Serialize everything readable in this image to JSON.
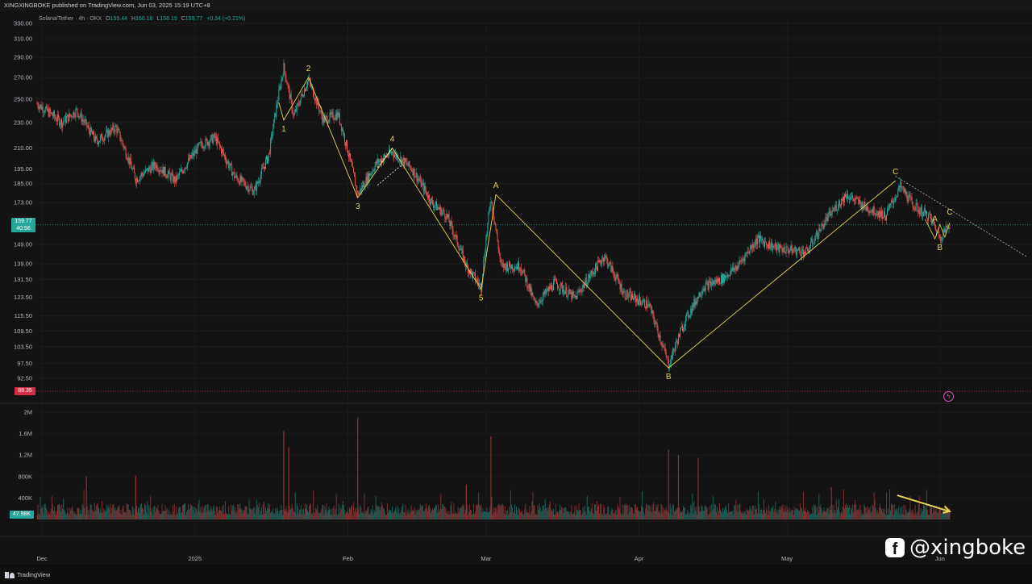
{
  "header": {
    "publish_line": "XINGXINGBOKE published on TradingView.com, Jun 03, 2025 15:19 UTC+8"
  },
  "legend": {
    "symbol": "Solana/Tether · 4h · OKX",
    "open_label": "O",
    "open": "159.44",
    "high_label": "H",
    "high": "160.18",
    "low_label": "L",
    "low": "158.19",
    "close_label": "C",
    "close": "159.77",
    "change": "+0.34 (+0.21%)"
  },
  "price_tag": {
    "price": "159.77",
    "countdown": "40:56"
  },
  "low_tag": "88.35",
  "volume_tag": "47.98K",
  "footer": {
    "brand": "TradingView"
  },
  "watermark": {
    "handle": "@xingboke",
    "icon": "facebook-icon"
  },
  "colors": {
    "up": "#26a69a",
    "down": "#ef5350",
    "wave": "#e8d44d",
    "background": "#131313"
  },
  "chart_data": {
    "type": "candlestick",
    "symbol": "Solana/Tether",
    "interval": "4h",
    "exchange": "OKX",
    "y_ticks": [
      "330.00",
      "310.00",
      "290.00",
      "270.00",
      "250.00",
      "230.00",
      "210.00",
      "195.00",
      "185.00",
      "173.00",
      "159.77",
      "149.00",
      "139.00",
      "131.50",
      "123.50",
      "115.50",
      "109.50",
      "103.50",
      "97.50",
      "92.50",
      "88.35"
    ],
    "y_tick_values": [
      330,
      310,
      290,
      270,
      250,
      230,
      210,
      195,
      185,
      173,
      159.77,
      149,
      139,
      131.5,
      123.5,
      115.5,
      109.5,
      103.5,
      97.5,
      92.5,
      88.35
    ],
    "volume_ticks": [
      "2M",
      "1.6M",
      "1.2M",
      "800K",
      "400K"
    ],
    "volume_tick_values": [
      2000000,
      1600000,
      1200000,
      800000,
      400000
    ],
    "x_ticks": [
      "Dec",
      "2025",
      "Feb",
      "Mar",
      "Apr",
      "May",
      "Jun"
    ],
    "x_tick_dates": [
      "2024-12-01",
      "2025-01-01",
      "2025-02-01",
      "2025-03-01",
      "2025-04-01",
      "2025-05-01",
      "2025-06-01"
    ],
    "date_range": [
      "2024-11-30",
      "2025-06-03"
    ],
    "log_scale": true,
    "price_anchors": [
      {
        "date": "2024-11-30",
        "price": 246
      },
      {
        "date": "2024-12-05",
        "price": 230
      },
      {
        "date": "2024-12-08",
        "price": 240
      },
      {
        "date": "2024-12-12",
        "price": 215
      },
      {
        "date": "2024-12-16",
        "price": 226
      },
      {
        "date": "2024-12-20",
        "price": 188
      },
      {
        "date": "2024-12-24",
        "price": 198
      },
      {
        "date": "2024-12-28",
        "price": 187
      },
      {
        "date": "2025-01-02",
        "price": 212
      },
      {
        "date": "2025-01-05",
        "price": 218
      },
      {
        "date": "2025-01-09",
        "price": 190
      },
      {
        "date": "2025-01-13",
        "price": 180
      },
      {
        "date": "2025-01-16",
        "price": 205
      },
      {
        "date": "2025-01-19",
        "price": 280
      },
      {
        "date": "2025-01-21",
        "price": 235
      },
      {
        "date": "2025-01-24",
        "price": 268
      },
      {
        "date": "2025-01-27",
        "price": 232
      },
      {
        "date": "2025-01-30",
        "price": 237
      },
      {
        "date": "2025-02-03",
        "price": 178
      },
      {
        "date": "2025-02-07",
        "price": 200
      },
      {
        "date": "2025-02-10",
        "price": 207
      },
      {
        "date": "2025-02-14",
        "price": 195
      },
      {
        "date": "2025-02-18",
        "price": 173
      },
      {
        "date": "2025-02-21",
        "price": 165
      },
      {
        "date": "2025-02-25",
        "price": 138
      },
      {
        "date": "2025-02-28",
        "price": 128
      },
      {
        "date": "2025-03-02",
        "price": 176
      },
      {
        "date": "2025-03-04",
        "price": 138
      },
      {
        "date": "2025-03-08",
        "price": 138
      },
      {
        "date": "2025-03-11",
        "price": 120
      },
      {
        "date": "2025-03-15",
        "price": 130
      },
      {
        "date": "2025-03-19",
        "price": 123
      },
      {
        "date": "2025-03-25",
        "price": 143
      },
      {
        "date": "2025-03-29",
        "price": 125
      },
      {
        "date": "2025-04-03",
        "price": 120
      },
      {
        "date": "2025-04-07",
        "price": 97
      },
      {
        "date": "2025-04-10",
        "price": 112
      },
      {
        "date": "2025-04-14",
        "price": 128
      },
      {
        "date": "2025-04-18",
        "price": 132
      },
      {
        "date": "2025-04-21",
        "price": 138
      },
      {
        "date": "2025-04-25",
        "price": 152
      },
      {
        "date": "2025-04-29",
        "price": 147
      },
      {
        "date": "2025-05-05",
        "price": 145
      },
      {
        "date": "2025-05-09",
        "price": 163
      },
      {
        "date": "2025-05-13",
        "price": 178
      },
      {
        "date": "2025-05-17",
        "price": 170
      },
      {
        "date": "2025-05-21",
        "price": 165
      },
      {
        "date": "2025-05-24",
        "price": 183
      },
      {
        "date": "2025-05-27",
        "price": 170
      },
      {
        "date": "2025-05-30",
        "price": 164
      },
      {
        "date": "2025-06-01",
        "price": 153
      },
      {
        "date": "2025-06-03",
        "price": 159.77
      }
    ],
    "volume_spikes": [
      {
        "date": "2025-01-19",
        "volume": 1650000
      },
      {
        "date": "2025-01-20",
        "volume": 1350000
      },
      {
        "date": "2025-02-03",
        "volume": 1900000
      },
      {
        "date": "2025-03-02",
        "volume": 1550000
      },
      {
        "date": "2025-02-25",
        "volume": 650000
      },
      {
        "date": "2025-04-07",
        "volume": 1300000
      },
      {
        "date": "2025-04-09",
        "volume": 1200000
      },
      {
        "date": "2025-04-13",
        "volume": 1150000
      },
      {
        "date": "2024-12-10",
        "volume": 800000
      },
      {
        "date": "2024-12-20",
        "volume": 820000
      },
      {
        "date": "2025-05-10",
        "volume": 600000
      }
    ],
    "elliott_waves": [
      {
        "label": "1",
        "date": "2025-01-19",
        "price": 232,
        "pos": "below"
      },
      {
        "label": "2",
        "date": "2025-01-24",
        "price": 270,
        "pos": "above"
      },
      {
        "label": "3",
        "date": "2025-02-03",
        "price": 176,
        "pos": "below"
      },
      {
        "label": "4",
        "date": "2025-02-10",
        "price": 210,
        "pos": "above"
      },
      {
        "label": "5",
        "date": "2025-02-28",
        "price": 127,
        "pos": "below"
      },
      {
        "label": "A",
        "date": "2025-03-03",
        "price": 178,
        "pos": "above"
      },
      {
        "label": "B",
        "date": "2025-04-07",
        "price": 96,
        "pos": "below"
      },
      {
        "label": "C",
        "date": "2025-05-23",
        "price": 187,
        "pos": "above"
      },
      {
        "label": "A",
        "date": "2025-05-31",
        "price": 158,
        "pos": "above"
      },
      {
        "label": "B",
        "date": "2025-06-01",
        "price": 152,
        "pos": "below"
      },
      {
        "label": "C",
        "date": "2025-06-03",
        "price": 162,
        "pos": "above"
      }
    ],
    "wave_path": [
      {
        "date": "2025-01-18",
        "price": 247
      },
      {
        "date": "2025-01-19",
        "price": 232
      },
      {
        "date": "2025-01-24",
        "price": 270
      },
      {
        "date": "2025-02-03",
        "price": 176
      },
      {
        "date": "2025-02-10",
        "price": 210
      },
      {
        "date": "2025-02-28",
        "price": 127
      },
      {
        "date": "2025-03-03",
        "price": 178
      },
      {
        "date": "2025-04-07",
        "price": 96
      },
      {
        "date": "2025-05-23",
        "price": 187
      }
    ],
    "channel_lines": [
      [
        {
          "date": "2025-02-07",
          "price": 196
        },
        {
          "date": "2025-02-10",
          "price": 210
        }
      ],
      [
        {
          "date": "2025-02-07",
          "price": 184
        },
        {
          "date": "2025-02-12",
          "price": 198
        }
      ]
    ],
    "trend_line": [
      {
        "date": "2025-05-23",
        "price": 190
      },
      {
        "date": "2025-06-18",
        "price": 142
      }
    ],
    "arrow": [
      {
        "date": "2025-05-24",
        "volume": 450000
      },
      {
        "date": "2025-06-03",
        "volume": 150000
      }
    ],
    "last_price": 159.77,
    "last_volume": "47.98K"
  }
}
